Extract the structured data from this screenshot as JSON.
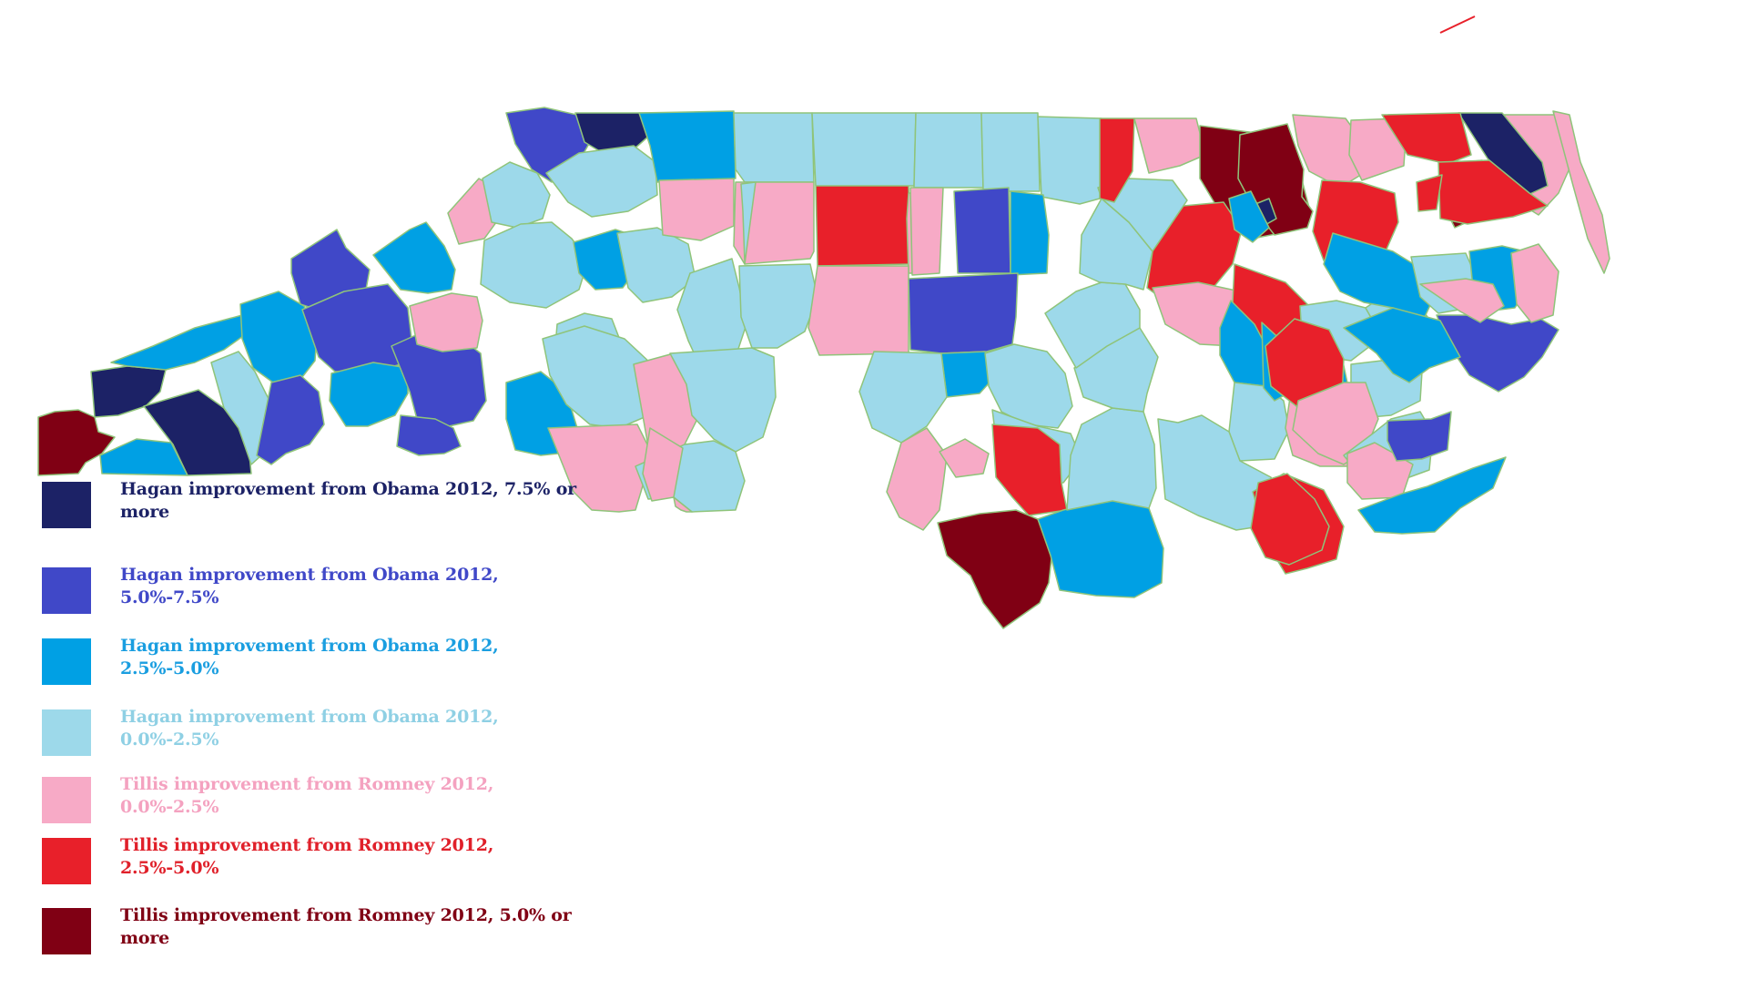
{
  "map": {
    "border_color": "#8fc47a",
    "legend": [
      {
        "key": "hagan-7-5-plus",
        "label": "Hagan improvement from Obama 2012, 7.5% or more",
        "color": "#1c2266",
        "text_color": "#1c2266"
      },
      {
        "key": "hagan-5-7-5",
        "label": "Hagan improvement from Obama 2012, 5.0%-7.5%",
        "color": "#4048c8",
        "text_color": "#4048c8"
      },
      {
        "key": "hagan-2-5-5",
        "label": "Hagan improvement from Obama 2012, 2.5%-5.0%",
        "color": "#00a0e4",
        "text_color": "#1a9ee0"
      },
      {
        "key": "hagan-0-2-5",
        "label": "Hagan improvement from Obama 2012, 0.0%-2.5%",
        "color": "#9dd9ea",
        "text_color": "#8fd0e4"
      },
      {
        "key": "tillis-0-2-5",
        "label": "Tillis improvement from Romney 2012, 0.0%-2.5%",
        "color": "#f7aac6",
        "text_color": "#f4a2c0"
      },
      {
        "key": "tillis-2-5-5",
        "label": "Tillis improvement from Romney 2012, 2.5%-5.0%",
        "color": "#e8202a",
        "text_color": "#e0202a"
      },
      {
        "key": "tillis-5-plus",
        "label": "Tillis improvement from Romney 2012, 5.0% or more",
        "color": "#800014",
        "text_color": "#800014"
      }
    ]
  }
}
